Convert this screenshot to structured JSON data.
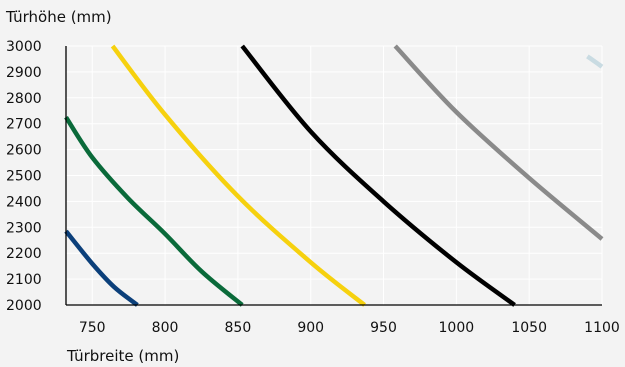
{
  "chart_data": {
    "type": "line",
    "title": "",
    "ylabel": "Türhöhe (mm)",
    "xlabel": "Türbreite (mm)",
    "xlim": [
      732,
      1100
    ],
    "ylim": [
      2000,
      3000
    ],
    "x_ticks": [
      750,
      800,
      850,
      900,
      950,
      1000,
      1050,
      1100
    ],
    "y_ticks": [
      2000,
      2100,
      2200,
      2300,
      2400,
      2500,
      2600,
      2700,
      2800,
      2900,
      3000
    ],
    "grid": true,
    "legend": "none",
    "series": [
      {
        "color": "#0b3f7a",
        "points": [
          [
            732,
            2285
          ],
          [
            750,
            2160
          ],
          [
            765,
            2070
          ],
          [
            781,
            2000
          ]
        ]
      },
      {
        "color": "#0a6a3a",
        "points": [
          [
            732,
            2725
          ],
          [
            750,
            2570
          ],
          [
            775,
            2410
          ],
          [
            800,
            2275
          ],
          [
            825,
            2130
          ],
          [
            853,
            2000
          ]
        ]
      },
      {
        "color": "#f6d10e",
        "points": [
          [
            764,
            3000
          ],
          [
            800,
            2735
          ],
          [
            850,
            2420
          ],
          [
            900,
            2165
          ],
          [
            937,
            2000
          ]
        ]
      },
      {
        "color": "#000000",
        "points": [
          [
            853,
            3000
          ],
          [
            900,
            2670
          ],
          [
            950,
            2400
          ],
          [
            1000,
            2165
          ],
          [
            1040,
            2000
          ]
        ]
      },
      {
        "color": "#8a8a8a",
        "points": [
          [
            958,
            3000
          ],
          [
            1000,
            2745
          ],
          [
            1050,
            2490
          ],
          [
            1100,
            2255
          ]
        ]
      },
      {
        "color": "#c9dbe2",
        "points": [
          [
            1090,
            2960
          ],
          [
            1100,
            2920
          ]
        ]
      }
    ]
  }
}
